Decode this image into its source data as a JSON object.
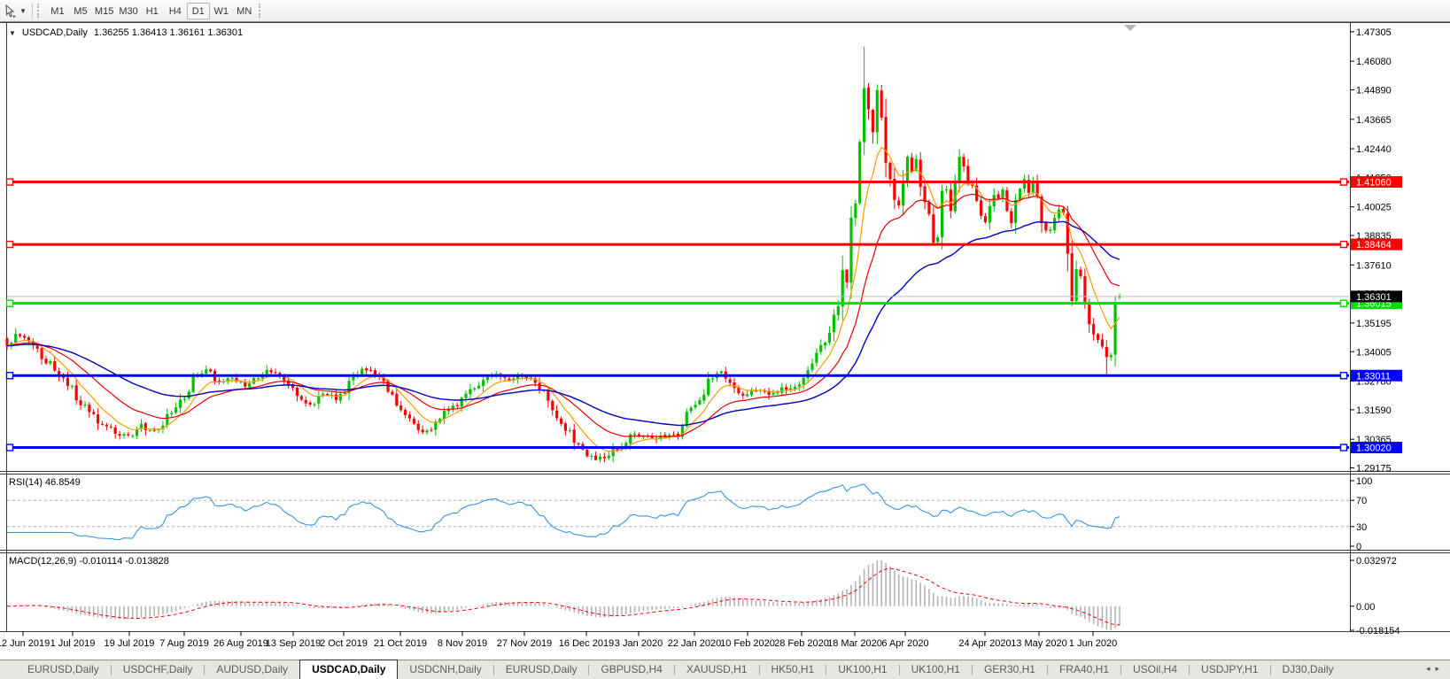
{
  "toolbar": {
    "timeframes": [
      "M1",
      "M5",
      "M15",
      "M30",
      "H1",
      "H4",
      "D1",
      "W1",
      "MN"
    ],
    "active_timeframe": "D1"
  },
  "chart": {
    "symbol": "USDCAD,Daily",
    "ohlc_text": "1.36255 1.36413 1.36161 1.36301"
  },
  "colors": {
    "bull": "#00c000",
    "bear": "#ff0000",
    "ma_fast": "#ff9900",
    "ma_medium": "#e60000",
    "ma_slow": "#0000c0",
    "hline_red": "#ff0000",
    "hline_green": "#00dd00",
    "hline_blue": "#0000ff",
    "current_price_line": "#bdbdbd",
    "current_price_badge": "#000000",
    "rsi_line": "#3894e4",
    "rsi_level_dash": "#b0b0b0",
    "macd_hist": "#b4b4b4",
    "macd_signal": "#ff0000",
    "axis_text": "#000000",
    "pane_border": "#3a3a3a",
    "shift_marker": "#b5b5b5"
  },
  "chart_data": {
    "type": "candlestick+indicators",
    "symbol": "USDCAD",
    "timeframe": "Daily",
    "bars_total": 258,
    "display_bar": {
      "open": 1.36255,
      "high": 1.36413,
      "low": 1.36161,
      "close": 1.36301
    },
    "current_price": 1.36301,
    "current_price_label": "1.36301",
    "price_axis_ticks": [
      "1.47305",
      "1.46080",
      "1.44890",
      "1.43665",
      "1.42440",
      "1.41250",
      "1.40025",
      "1.38835",
      "1.37610",
      "1.36420",
      "1.35195",
      "1.34005",
      "1.32780",
      "1.31590",
      "1.30365",
      "1.29175"
    ],
    "x_labels": [
      "12 Jun 2019",
      "1 Jul 2019",
      "19 Jul 2019",
      "7 Aug 2019",
      "26 Aug 2019",
      "13 Sep 2019",
      "2 Oct 2019",
      "21 Oct 2019",
      "8 Nov 2019",
      "27 Nov 2019",
      "16 Dec 2019",
      "3 Jan 2020",
      "22 Jan 2020",
      "10 Feb 2020",
      "28 Feb 2020",
      "18 Mar 2020",
      "6 Apr 2020",
      "24 Apr 2020",
      "13 May 2020",
      "1 Jun 2020"
    ],
    "x_label_positions": [
      26,
      82,
      146,
      208,
      272,
      331,
      388,
      452,
      522,
      592,
      662,
      721,
      784,
      844,
      905,
      965,
      1022,
      1112,
      1173,
      1234
    ],
    "hlines": [
      {
        "value": 1.4106,
        "label": "1.41060",
        "color": "#ff0000"
      },
      {
        "value": 1.38464,
        "label": "1.38464",
        "color": "#ff0000"
      },
      {
        "value": 1.36015,
        "label": "1.36015",
        "color": "#00dd00"
      },
      {
        "value": 1.33011,
        "label": "1.33011",
        "color": "#0000ff"
      },
      {
        "value": 1.3002,
        "label": "1.30020",
        "color": "#0000ff"
      }
    ],
    "moving_averages": [
      {
        "name": "ma-fast",
        "period": 8,
        "color": "#ff9900",
        "width": 1.2
      },
      {
        "name": "ma-medium",
        "period": 21,
        "color": "#e60000",
        "width": 1.2
      },
      {
        "name": "ma-slow",
        "period": 50,
        "color": "#0000c0",
        "width": 1.4
      }
    ],
    "close_anchors": [
      [
        0,
        1.3425
      ],
      [
        2,
        1.3468
      ],
      [
        4,
        1.3448
      ],
      [
        7,
        1.3398
      ],
      [
        10,
        1.3352
      ],
      [
        13,
        1.3295
      ],
      [
        16,
        1.321
      ],
      [
        19,
        1.3142
      ],
      [
        22,
        1.3096
      ],
      [
        25,
        1.3068
      ],
      [
        28,
        1.3042
      ],
      [
        31,
        1.309
      ],
      [
        34,
        1.3064
      ],
      [
        37,
        1.3126
      ],
      [
        40,
        1.3192
      ],
      [
        43,
        1.3284
      ],
      [
        46,
        1.3332
      ],
      [
        49,
        1.327
      ],
      [
        52,
        1.33
      ],
      [
        55,
        1.3264
      ],
      [
        58,
        1.3294
      ],
      [
        61,
        1.3324
      ],
      [
        64,
        1.3274
      ],
      [
        67,
        1.3224
      ],
      [
        70,
        1.3174
      ],
      [
        73,
        1.3234
      ],
      [
        76,
        1.3204
      ],
      [
        79,
        1.3264
      ],
      [
        82,
        1.3326
      ],
      [
        85,
        1.3304
      ],
      [
        88,
        1.3244
      ],
      [
        91,
        1.3164
      ],
      [
        94,
        1.3094
      ],
      [
        97,
        1.3064
      ],
      [
        100,
        1.3124
      ],
      [
        103,
        1.3174
      ],
      [
        106,
        1.322
      ],
      [
        109,
        1.327
      ],
      [
        112,
        1.331
      ],
      [
        115,
        1.3284
      ],
      [
        118,
        1.3304
      ],
      [
        121,
        1.3294
      ],
      [
        124,
        1.3234
      ],
      [
        127,
        1.313
      ],
      [
        130,
        1.3064
      ],
      [
        132,
        1.3004
      ],
      [
        134,
        1.2974
      ],
      [
        136,
        1.2958
      ],
      [
        138,
        1.297
      ],
      [
        140,
        1.2988
      ],
      [
        142,
        1.3016
      ],
      [
        144,
        1.3048
      ],
      [
        147,
        1.3058
      ],
      [
        150,
        1.3042
      ],
      [
        153,
        1.3054
      ],
      [
        155,
        1.3048
      ],
      [
        157,
        1.3148
      ],
      [
        160,
        1.319
      ],
      [
        163,
        1.3306
      ],
      [
        165,
        1.3322
      ],
      [
        167,
        1.3258
      ],
      [
        170,
        1.3226
      ],
      [
        173,
        1.3234
      ],
      [
        176,
        1.3226
      ],
      [
        179,
        1.325
      ],
      [
        181,
        1.3244
      ],
      [
        183,
        1.327
      ],
      [
        185,
        1.3334
      ],
      [
        187,
        1.34
      ],
      [
        189,
        1.3444
      ],
      [
        191,
        1.3532
      ],
      [
        192,
        1.3612
      ],
      [
        193,
        1.3696
      ],
      [
        194,
        1.3736
      ],
      [
        195,
        1.3936
      ],
      [
        196,
        1.4056
      ],
      [
        197,
        1.4286
      ],
      [
        198,
        1.45
      ],
      [
        199,
        1.4382
      ],
      [
        200,
        1.4302
      ],
      [
        201,
        1.4476
      ],
      [
        202,
        1.4382
      ],
      [
        203,
        1.4202
      ],
      [
        204,
        1.4122
      ],
      [
        205,
        1.4042
      ],
      [
        206,
        1.3992
      ],
      [
        207,
        1.4092
      ],
      [
        208,
        1.4202
      ],
      [
        209,
        1.4142
      ],
      [
        210,
        1.4216
      ],
      [
        211,
        1.4082
      ],
      [
        212,
        1.4012
      ],
      [
        213,
        1.3956
      ],
      [
        214,
        1.3866
      ],
      [
        215,
        1.3892
      ],
      [
        216,
        1.4086
      ],
      [
        217,
        1.4052
      ],
      [
        218,
        1.3996
      ],
      [
        219,
        1.4126
      ],
      [
        220,
        1.4216
      ],
      [
        221,
        1.4162
      ],
      [
        222,
        1.4096
      ],
      [
        223,
        1.4076
      ],
      [
        224,
        1.4032
      ],
      [
        225,
        1.3952
      ],
      [
        226,
        1.3936
      ],
      [
        227,
        1.4012
      ],
      [
        228,
        1.4066
      ],
      [
        229,
        1.4032
      ],
      [
        230,
        1.4076
      ],
      [
        231,
        1.3986
      ],
      [
        232,
        1.3926
      ],
      [
        233,
        1.4026
      ],
      [
        234,
        1.4076
      ],
      [
        235,
        1.4106
      ],
      [
        236,
        1.4056
      ],
      [
        237,
        1.4106
      ],
      [
        238,
        1.4056
      ],
      [
        239,
        1.3952
      ],
      [
        240,
        1.3922
      ],
      [
        241,
        1.3912
      ],
      [
        242,
        1.3952
      ],
      [
        243,
        1.3986
      ],
      [
        244,
        1.4022
      ],
      [
        245,
        1.3802
      ],
      [
        246,
        1.3586
      ],
      [
        247,
        1.3756
      ],
      [
        248,
        1.3702
      ],
      [
        249,
        1.3592
      ],
      [
        250,
        1.3532
      ],
      [
        251,
        1.3496
      ],
      [
        252,
        1.3446
      ],
      [
        253,
        1.3422
      ],
      [
        254,
        1.3372
      ],
      [
        255,
        1.3402
      ],
      [
        256,
        1.3576
      ],
      [
        257,
        1.36301
      ]
    ],
    "forced_extremes": [
      {
        "range": [
          193,
          202
        ],
        "side": "high",
        "value": 1.4668
      },
      {
        "range": [
          130,
          144
        ],
        "side": "low",
        "value": 1.295
      },
      {
        "range": [
          249,
          256
        ],
        "side": "low",
        "value": 1.3301
      }
    ],
    "rsi": {
      "label": "RSI(14) 46.8549",
      "period": 14,
      "value": "46.8549",
      "levels": [
        70,
        30
      ],
      "axis_labels": [
        "100",
        "70",
        "30",
        "0"
      ]
    },
    "macd": {
      "label": "MACD(12,26,9) -0.010114 -0.013828",
      "fast": 12,
      "slow": 26,
      "signal": 9,
      "value_main": "-0.010114",
      "value_signal": "-0.013828",
      "axis_max": "0.032972",
      "axis_zero": "0.00",
      "axis_min": "-0.018154"
    }
  },
  "tabs": {
    "items": [
      "EURUSD,Daily",
      "USDCHF,Daily",
      "AUDUSD,Daily",
      "USDCAD,Daily",
      "USDCNH,Daily",
      "EURUSD,Daily",
      "GBPUSD,H4",
      "XAUUSD,H1",
      "HK50,H1",
      "UK100,H1",
      "UK100,H1",
      "GER30,H1",
      "FRA40,H1",
      "USOil,H4",
      "USDJPY,H1",
      "DJ30,Daily"
    ],
    "active_index": 3,
    "nav_left": "◂",
    "nav_right": "▸"
  }
}
